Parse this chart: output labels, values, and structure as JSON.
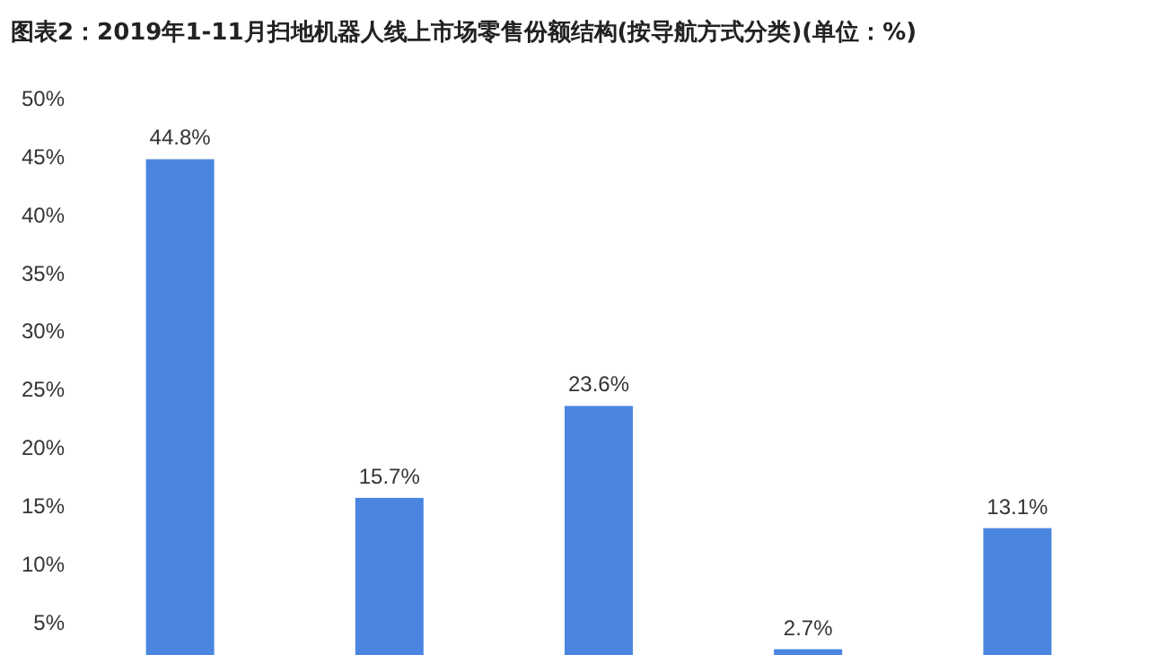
{
  "chart_data": {
    "type": "bar",
    "title": "图表2：2019年1-11月扫地机器人线上市场零售份额结构(按导航方式分类)(单位：%)",
    "categories": [
      null,
      null,
      null,
      null,
      null
    ],
    "values": [
      44.8,
      15.7,
      23.6,
      2.7,
      13.1
    ],
    "color": "#4a86e0",
    "value_labels": [
      "44.8%",
      "15.7%",
      "23.6%",
      "2.7%",
      "13.1%"
    ],
    "ylim": [
      2.2,
      50
    ],
    "yticks": [
      {
        "value": 5,
        "label": "5%"
      },
      {
        "value": 10,
        "label": "10%"
      },
      {
        "value": 15,
        "label": "15%"
      },
      {
        "value": 20,
        "label": "20%"
      },
      {
        "value": 25,
        "label": "25%"
      },
      {
        "value": 30,
        "label": "30%"
      },
      {
        "value": 35,
        "label": "35%"
      },
      {
        "value": 40,
        "label": "40%"
      },
      {
        "value": 45,
        "label": "45%"
      },
      {
        "value": 50,
        "label": "50%"
      }
    ],
    "grid": false
  }
}
